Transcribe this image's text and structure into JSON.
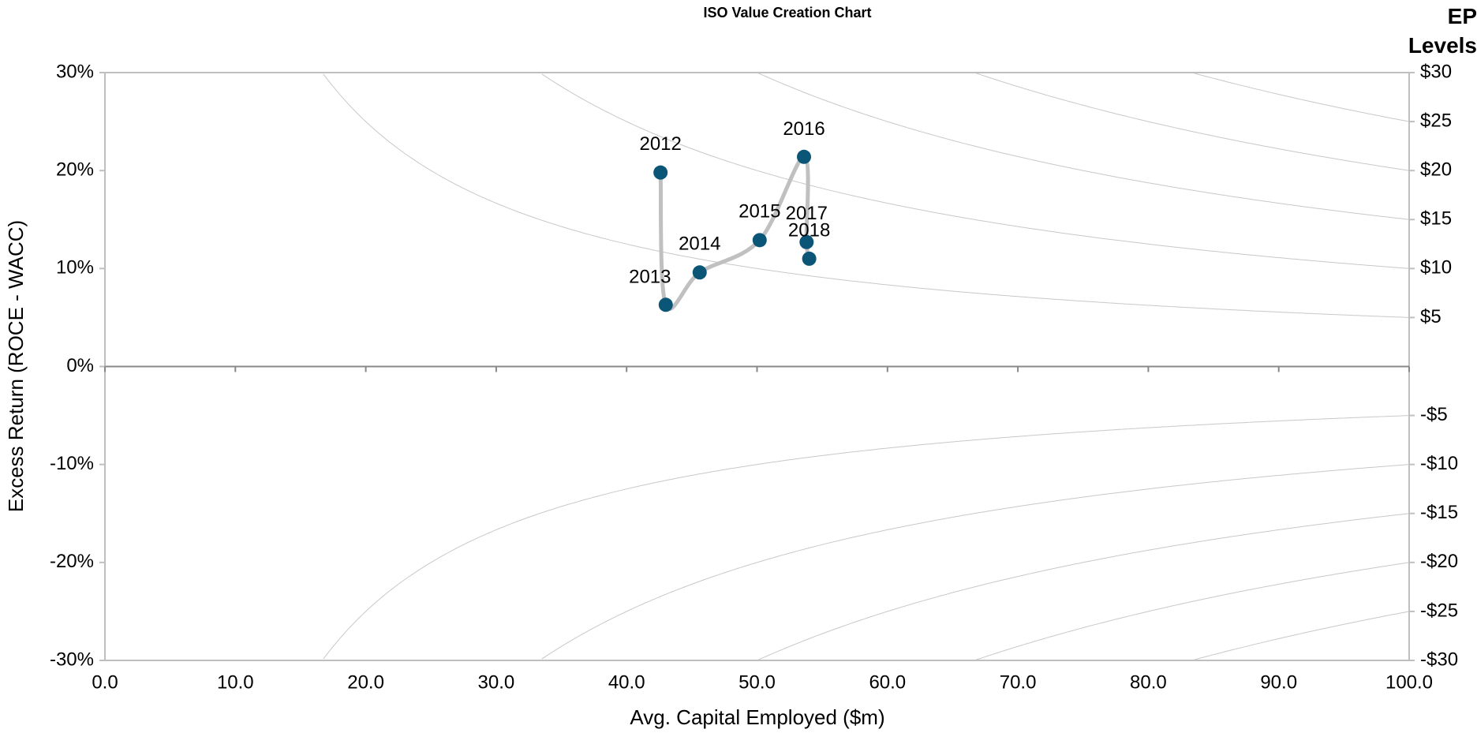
{
  "chart_data": {
    "type": "scatter",
    "title": "ISO Value Creation Chart",
    "x_label": "Avg. Capital Employed ($m)",
    "y_label": "Excess Return (ROCE - WACC)",
    "y2_label": "EP Levels",
    "x": [
      42.6,
      43.0,
      45.6,
      50.2,
      53.6,
      53.8,
      54.0
    ],
    "values": [
      19.8,
      6.3,
      9.6,
      12.9,
      21.4,
      12.7,
      11.0
    ],
    "point_labels": [
      "2012",
      "2013",
      "2014",
      "2015",
      "2016",
      "2017",
      "2018"
    ],
    "color": "#0b5577",
    "line_color": "#c0c0c0",
    "curve_color": "#c8c8c8",
    "xlim": [
      0,
      100
    ],
    "xticks": [
      {
        "value": 0,
        "label": "0.0"
      },
      {
        "value": 10,
        "label": "10.0"
      },
      {
        "value": 20,
        "label": "20.0"
      },
      {
        "value": 30,
        "label": "30.0"
      },
      {
        "value": 40,
        "label": "40.0"
      },
      {
        "value": 50,
        "label": "50.0"
      },
      {
        "value": 60,
        "label": "60.0"
      },
      {
        "value": 70,
        "label": "70.0"
      },
      {
        "value": 80,
        "label": "80.0"
      },
      {
        "value": 90,
        "label": "90.0"
      },
      {
        "value": 100,
        "label": "100.0"
      }
    ],
    "ylim": [
      -30,
      30
    ],
    "yticks": [
      {
        "value": -30,
        "label": "-30%"
      },
      {
        "value": -20,
        "label": "-20%"
      },
      {
        "value": -10,
        "label": "-10%"
      },
      {
        "value": 0,
        "label": "0%"
      },
      {
        "value": 10,
        "label": "10%"
      },
      {
        "value": 20,
        "label": "20%"
      },
      {
        "value": 30,
        "label": "30%"
      }
    ],
    "y2lim": [
      -30,
      30
    ],
    "y2ticks": [
      {
        "value": 30,
        "label": "$30"
      },
      {
        "value": 25,
        "label": "$25"
      },
      {
        "value": 20,
        "label": "$20"
      },
      {
        "value": 15,
        "label": "$15"
      },
      {
        "value": 10,
        "label": "$10"
      },
      {
        "value": 5,
        "label": "$5"
      },
      {
        "value": -5,
        "label": "-$5"
      },
      {
        "value": -10,
        "label": "-$10"
      },
      {
        "value": -15,
        "label": "-$15"
      },
      {
        "value": -20,
        "label": "-$20"
      },
      {
        "value": -25,
        "label": "-$25"
      },
      {
        "value": -30,
        "label": "-$30"
      }
    ]
  }
}
